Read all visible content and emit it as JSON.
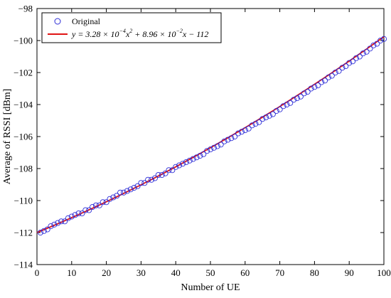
{
  "chart_data": {
    "type": "scatter",
    "title": "",
    "xlabel": "Number of UE",
    "ylabel": "Average of RSSI [dBm]",
    "xlim": [
      0,
      100
    ],
    "ylim": [
      -114,
      -98
    ],
    "xticks": [
      0,
      10,
      20,
      30,
      40,
      50,
      60,
      70,
      80,
      90,
      100
    ],
    "yticks": [
      -114,
      -112,
      -110,
      -108,
      -106,
      -104,
      -102,
      -100,
      -98
    ],
    "grid": false,
    "legend_position": "top-left",
    "series": [
      {
        "name": "Original",
        "kind": "markers",
        "marker": "circle-open",
        "color": "#2b2bd6",
        "x": [
          1,
          2,
          3,
          4,
          5,
          6,
          7,
          8,
          9,
          10,
          11,
          12,
          13,
          14,
          15,
          16,
          17,
          18,
          19,
          20,
          21,
          22,
          23,
          24,
          25,
          26,
          27,
          28,
          29,
          30,
          31,
          32,
          33,
          34,
          35,
          36,
          37,
          38,
          39,
          40,
          41,
          42,
          43,
          44,
          45,
          46,
          47,
          48,
          49,
          50,
          51,
          52,
          53,
          54,
          55,
          56,
          57,
          58,
          59,
          60,
          61,
          62,
          63,
          64,
          65,
          66,
          67,
          68,
          69,
          70,
          71,
          72,
          73,
          74,
          75,
          76,
          77,
          78,
          79,
          80,
          81,
          82,
          83,
          84,
          85,
          86,
          87,
          88,
          89,
          90,
          91,
          92,
          93,
          94,
          95,
          96,
          97,
          98,
          99,
          100
        ],
        "y": [
          -112.0,
          -111.9,
          -111.8,
          -111.6,
          -111.5,
          -111.4,
          -111.3,
          -111.3,
          -111.1,
          -111.0,
          -110.9,
          -110.8,
          -110.8,
          -110.6,
          -110.6,
          -110.4,
          -110.3,
          -110.3,
          -110.1,
          -110.1,
          -109.9,
          -109.8,
          -109.7,
          -109.5,
          -109.5,
          -109.4,
          -109.3,
          -109.2,
          -109.1,
          -108.9,
          -108.9,
          -108.7,
          -108.7,
          -108.6,
          -108.4,
          -108.4,
          -108.3,
          -108.1,
          -108.1,
          -107.9,
          -107.8,
          -107.7,
          -107.6,
          -107.5,
          -107.4,
          -107.3,
          -107.2,
          -107.1,
          -106.9,
          -106.8,
          -106.7,
          -106.6,
          -106.5,
          -106.3,
          -106.2,
          -106.1,
          -106.0,
          -105.8,
          -105.7,
          -105.6,
          -105.5,
          -105.3,
          -105.2,
          -105.1,
          -104.9,
          -104.8,
          -104.7,
          -104.6,
          -104.4,
          -104.3,
          -104.1,
          -104.0,
          -103.9,
          -103.7,
          -103.6,
          -103.5,
          -103.3,
          -103.2,
          -103.0,
          -102.9,
          -102.8,
          -102.6,
          -102.5,
          -102.3,
          -102.2,
          -102.0,
          -101.9,
          -101.7,
          -101.6,
          -101.4,
          -101.3,
          -101.1,
          -101.0,
          -100.8,
          -100.7,
          -100.5,
          -100.3,
          -100.2,
          -100.0,
          -99.9
        ]
      },
      {
        "name": "y = 3.28 × 10⁻⁴x² + 8.96 × 10⁻²x − 112",
        "kind": "line",
        "color": "#e01414",
        "x": [
          0,
          5,
          10,
          15,
          20,
          25,
          30,
          35,
          40,
          45,
          50,
          55,
          60,
          65,
          70,
          75,
          80,
          85,
          90,
          95,
          100
        ],
        "y": [
          -112.0,
          -111.544,
          -111.071,
          -110.582,
          -110.077,
          -109.555,
          -109.017,
          -108.462,
          -107.891,
          -107.304,
          -106.7,
          -106.08,
          -105.444,
          -104.791,
          -104.121,
          -103.436,
          -102.734,
          -102.016,
          -101.281,
          -100.53,
          -99.76
        ]
      }
    ],
    "legend": {
      "original_label": "Original",
      "fit_label_parts": {
        "prefix": "y = 3.28 × 10",
        "exp1": "−4",
        "mid1": "x",
        "exp2": "2",
        "mid2": " + 8.96 × 10",
        "exp3": "−2",
        "suffix": "x − 112"
      }
    },
    "colors": {
      "markers": "#2b2bd6",
      "fit_line": "#e01414",
      "axes": "#000000"
    }
  }
}
